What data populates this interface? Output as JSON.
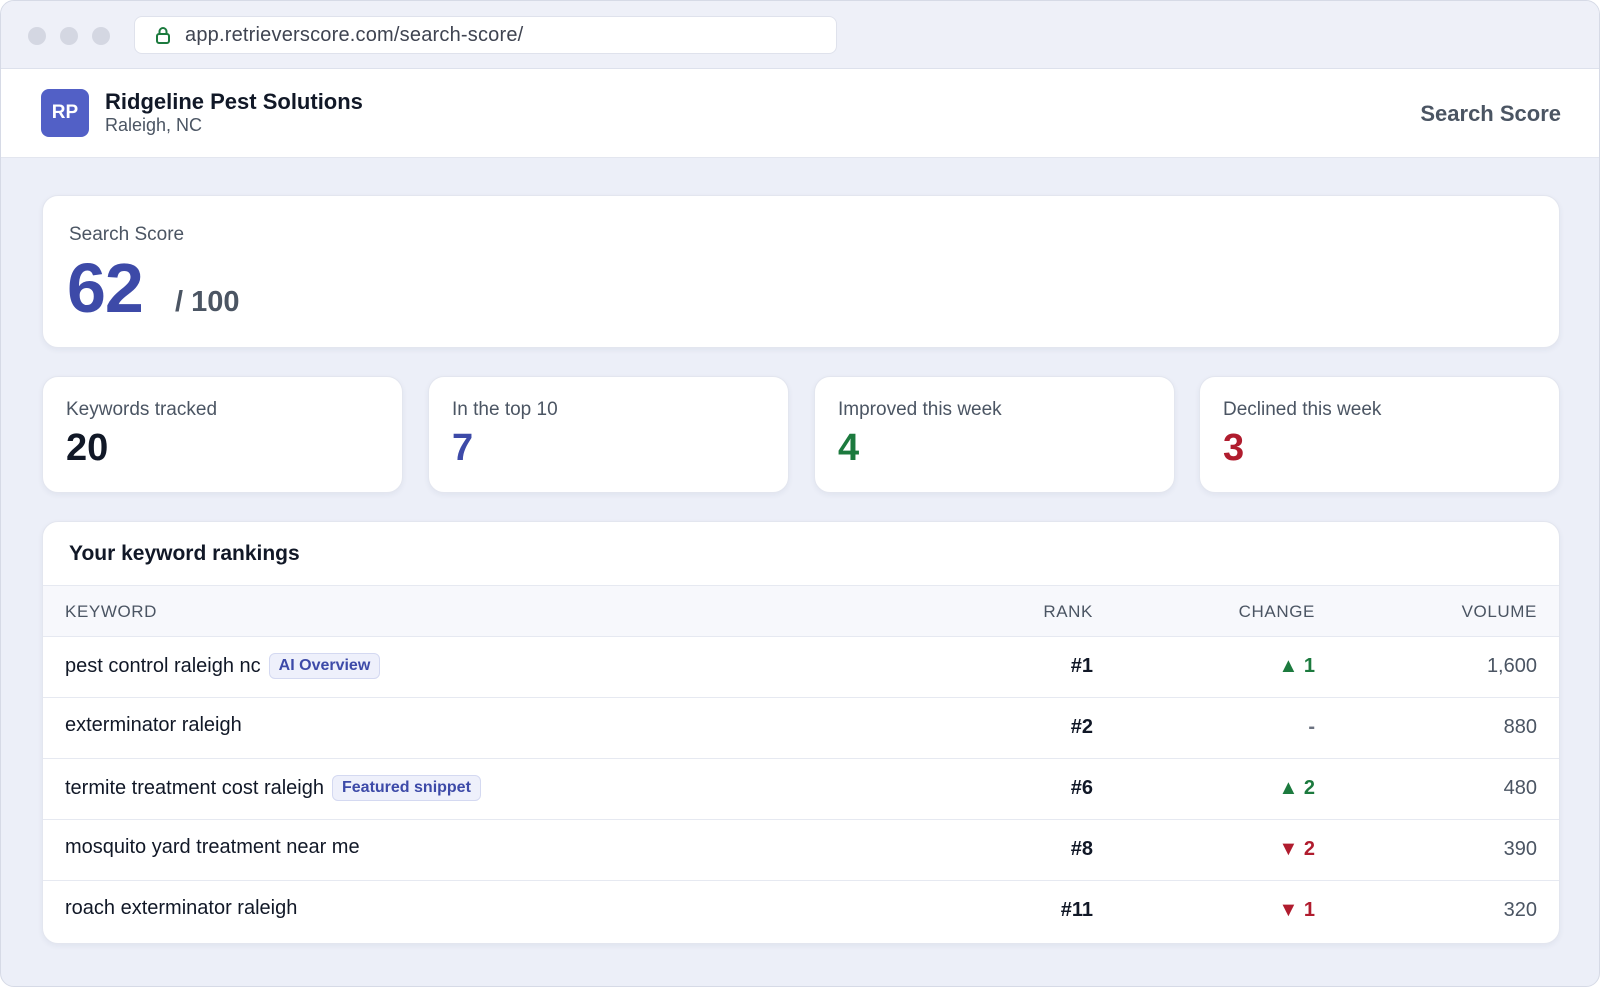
{
  "browser": {
    "url": "app.retrieverscore.com/search-score/"
  },
  "header": {
    "avatar_initials": "RP",
    "business_name": "Ridgeline Pest Solutions",
    "location": "Raleigh, NC",
    "page_title": "Search Score"
  },
  "score": {
    "label": "Search Score",
    "value": "62",
    "max": "/ 100"
  },
  "stats": [
    {
      "label": "Keywords tracked",
      "value": "20",
      "color": "#111827"
    },
    {
      "label": "In the top 10",
      "value": "7",
      "color": "#3d4aa8"
    },
    {
      "label": "Improved this week",
      "value": "4",
      "color": "#1c7a3e"
    },
    {
      "label": "Declined this week",
      "value": "3",
      "color": "#b01c2e"
    }
  ],
  "rankings": {
    "title": "Your keyword rankings",
    "columns": {
      "keyword": "KEYWORD",
      "rank": "RANK",
      "change": "CHANGE",
      "volume": "VOLUME"
    },
    "rows": [
      {
        "keyword": "pest control raleigh nc",
        "badge": "AI Overview",
        "rank": "#1",
        "change": "▲ 1",
        "direction": "up",
        "volume": "1,600"
      },
      {
        "keyword": "exterminator raleigh",
        "badge": "",
        "rank": "#2",
        "change": "-",
        "direction": "flat",
        "volume": "880"
      },
      {
        "keyword": "termite treatment cost raleigh",
        "badge": "Featured snippet",
        "rank": "#6",
        "change": "▲ 2",
        "direction": "up",
        "volume": "480"
      },
      {
        "keyword": "mosquito yard treatment near me",
        "badge": "",
        "rank": "#8",
        "change": "▼ 2",
        "direction": "down",
        "volume": "390"
      },
      {
        "keyword": "roach exterminator raleigh",
        "badge": "",
        "rank": "#11",
        "change": "▼ 1",
        "direction": "down",
        "volume": "320"
      }
    ]
  }
}
